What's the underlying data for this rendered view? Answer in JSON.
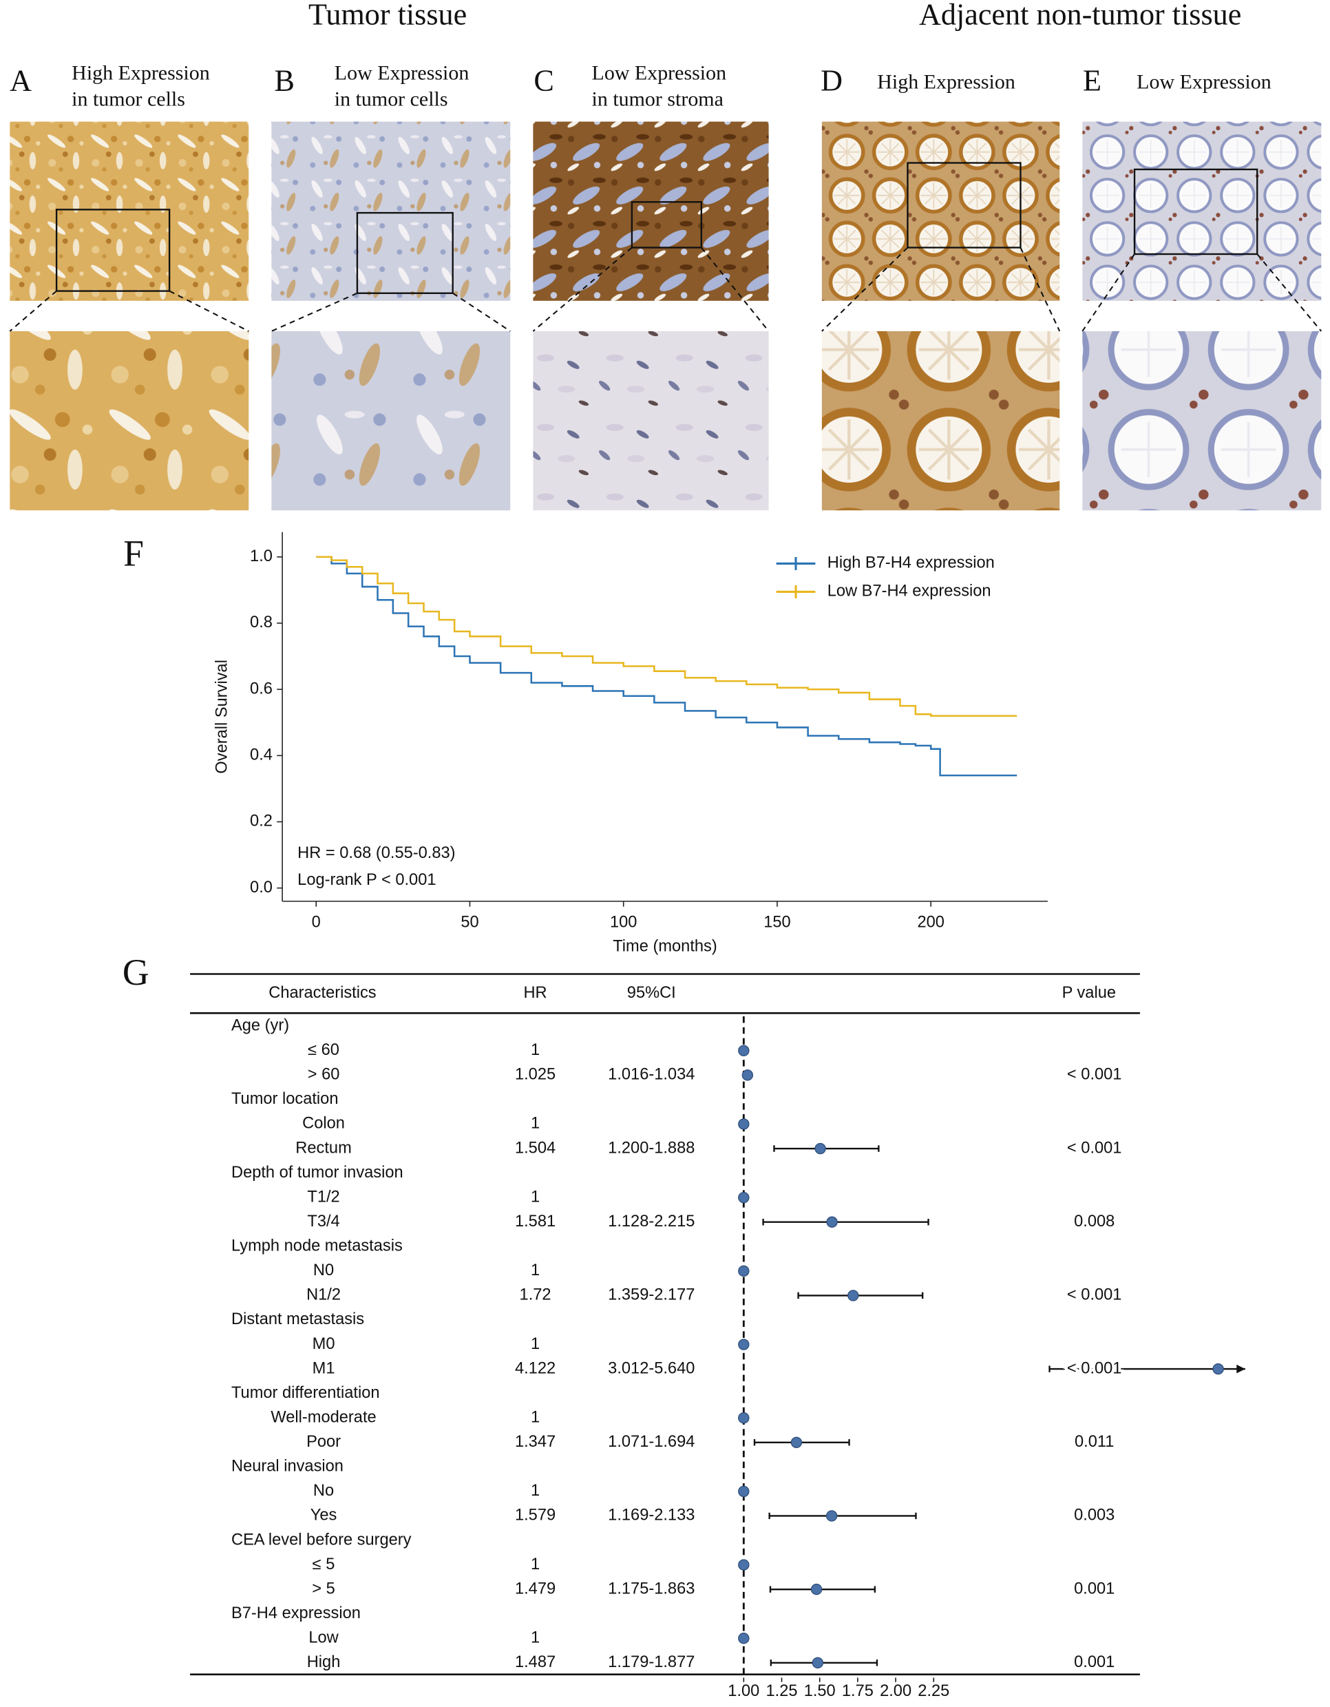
{
  "headings": [
    "Tumor tissue",
    "Adjacent non-tumor tissue"
  ],
  "panels": [
    {
      "letter": "A",
      "caption": [
        "High Expression",
        "in tumor cells"
      ]
    },
    {
      "letter": "B",
      "caption": [
        "Low Expression",
        "in tumor cells"
      ]
    },
    {
      "letter": "C",
      "caption": [
        "Low Expression",
        "in tumor stroma"
      ]
    },
    {
      "letter": "D",
      "caption": [
        "High Expression"
      ]
    },
    {
      "letter": "E",
      "caption": [
        "Low Expression"
      ]
    }
  ],
  "chart_data": [
    {
      "type": "line",
      "label": "F",
      "step": true,
      "xlabel": "Time (months)",
      "ylabel": "Overall Survival",
      "x": [
        0,
        5,
        10,
        15,
        20,
        25,
        30,
        35,
        40,
        45,
        50,
        60,
        70,
        80,
        90,
        100,
        110,
        120,
        130,
        140,
        150,
        160,
        170,
        180,
        190,
        195,
        200,
        203,
        210,
        220,
        228
      ],
      "series": [
        {
          "name": "High B7-H4 expression",
          "color": "#2c74b5",
          "values": [
            1,
            0.98,
            0.95,
            0.91,
            0.87,
            0.83,
            0.79,
            0.76,
            0.73,
            0.7,
            0.68,
            0.65,
            0.62,
            0.61,
            0.595,
            0.58,
            0.56,
            0.535,
            0.515,
            0.5,
            0.485,
            0.46,
            0.45,
            0.44,
            0.435,
            0.43,
            0.42,
            0.34,
            0.34,
            0.34,
            0.34
          ]
        },
        {
          "name": "Low B7-H4 expression",
          "color": "#e8b71f",
          "values": [
            1,
            0.99,
            0.97,
            0.95,
            0.92,
            0.89,
            0.86,
            0.835,
            0.81,
            0.775,
            0.76,
            0.73,
            0.71,
            0.7,
            0.68,
            0.67,
            0.655,
            0.635,
            0.625,
            0.615,
            0.605,
            0.6,
            0.59,
            0.57,
            0.55,
            0.525,
            0.52,
            0.52,
            0.52,
            0.52,
            0.52
          ]
        }
      ],
      "xlim": [
        -11,
        238
      ],
      "xticks": [
        0,
        50,
        100,
        150,
        200
      ],
      "ylim": [
        -0.04,
        1.075
      ],
      "yticks": [
        {
          "value": 0,
          "label": "0.0"
        },
        {
          "value": 0.2,
          "label": "0.2"
        },
        {
          "value": 0.4,
          "label": "0.4"
        },
        {
          "value": 0.6,
          "label": "0.6"
        },
        {
          "value": 0.8,
          "label": "0.8"
        },
        {
          "value": 1,
          "label": "1.0"
        }
      ],
      "legend": "top-right",
      "annotations": [
        "HR = 0.68 (0.55-0.83)",
        "Log-rank P < 0.001"
      ]
    },
    {
      "type": "forest",
      "label": "G",
      "color": "#4a72a8",
      "columns": [
        "Characteristics",
        "HR",
        "95%CI",
        "P value"
      ],
      "categories": [
        "Age (yr)",
        "≤ 60",
        "> 60",
        "Tumor location",
        "Colon",
        "Rectum",
        "Depth of tumor invasion",
        "T1/2",
        "T3/4",
        "Lymph node metastasis",
        "N0",
        "N1/2",
        "Distant metastasis",
        "M0",
        "M1",
        "Tumor differentiation",
        "Well-moderate",
        "Poor",
        "Neural invasion",
        "No",
        "Yes",
        "CEA level before surgery",
        "≤ 5",
        "> 5",
        "B7-H4 expression",
        "Low",
        "High"
      ],
      "values": [
        null,
        1,
        1.025,
        null,
        1,
        1.504,
        null,
        1,
        1.581,
        null,
        1,
        1.72,
        null,
        1,
        4.122,
        null,
        1,
        1.347,
        null,
        1,
        1.579,
        null,
        1,
        1.479,
        null,
        1,
        1.487
      ],
      "ci_low": [
        null,
        null,
        1.016,
        null,
        null,
        1.2,
        null,
        null,
        1.128,
        null,
        null,
        1.359,
        null,
        null,
        3.012,
        null,
        null,
        1.071,
        null,
        null,
        1.169,
        null,
        null,
        1.175,
        null,
        null,
        1.179
      ],
      "ci_high": [
        null,
        null,
        1.034,
        null,
        null,
        1.888,
        null,
        null,
        2.215,
        null,
        null,
        2.177,
        null,
        null,
        5.64,
        null,
        null,
        1.694,
        null,
        null,
        2.133,
        null,
        null,
        1.863,
        null,
        null,
        1.877
      ],
      "ci_labels": [
        null,
        null,
        "1.016-1.034",
        null,
        null,
        "1.200-1.888",
        null,
        null,
        "1.128-2.215",
        null,
        null,
        "1.359-2.177",
        null,
        null,
        "3.012-5.640",
        null,
        null,
        "1.071-1.694",
        null,
        null,
        "1.169-2.133",
        null,
        null,
        "1.175-1.863",
        null,
        null,
        "1.179-1.877"
      ],
      "p_labels": [
        null,
        null,
        "< 0.001",
        null,
        null,
        "< 0.001",
        null,
        null,
        "0.008",
        null,
        null,
        "< 0.001",
        null,
        null,
        "< 0.001",
        null,
        null,
        "0.011",
        null,
        null,
        "0.003",
        null,
        null,
        "0.001",
        null,
        null,
        "0.001"
      ],
      "reference": 1,
      "xlim": [
        0.9,
        4.3
      ],
      "xticks": [
        {
          "value": 1,
          "label": "1.00"
        },
        {
          "value": 1.25,
          "label": "1.25"
        },
        {
          "value": 1.5,
          "label": "1.50"
        },
        {
          "value": 1.75,
          "label": "1.75"
        },
        {
          "value": 2,
          "label": "2.00"
        },
        {
          "value": 2.25,
          "label": "2.25"
        }
      ]
    }
  ]
}
